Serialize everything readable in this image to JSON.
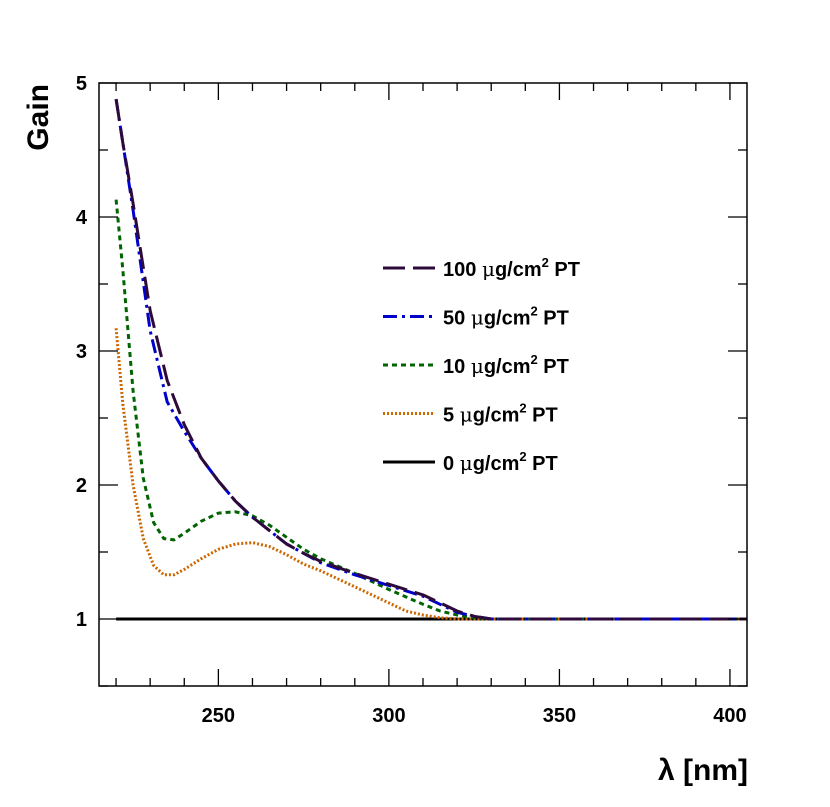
{
  "chart_data": {
    "type": "line",
    "title": "",
    "xlabel": "λ [nm]",
    "ylabel": "Gain",
    "xlim": [
      215,
      405
    ],
    "ylim": [
      0.5,
      5
    ],
    "xticks": [
      250,
      300,
      350,
      400
    ],
    "yticks": [
      1,
      2,
      3,
      4,
      5
    ],
    "grid": false,
    "legend_position": "right-center",
    "series": [
      {
        "name": "100 μg/cm² PT",
        "legend_pre": "100 ",
        "legend_sup": "2",
        "legend_post": " PT",
        "color": "#2d0a3a",
        "dash": "22,8",
        "points": [
          [
            220,
            4.88
          ],
          [
            222,
            4.55
          ],
          [
            225,
            4.1
          ],
          [
            230,
            3.3
          ],
          [
            235,
            2.78
          ],
          [
            240,
            2.45
          ],
          [
            245,
            2.2
          ],
          [
            250,
            2.03
          ],
          [
            255,
            1.88
          ],
          [
            260,
            1.76
          ],
          [
            265,
            1.66
          ],
          [
            270,
            1.56
          ],
          [
            275,
            1.49
          ],
          [
            280,
            1.43
          ],
          [
            290,
            1.34
          ],
          [
            300,
            1.26
          ],
          [
            310,
            1.18
          ],
          [
            315,
            1.12
          ],
          [
            320,
            1.06
          ],
          [
            325,
            1.02
          ],
          [
            330,
            1.0
          ],
          [
            405,
            1.0
          ]
        ]
      },
      {
        "name": "50 μg/cm² PT",
        "legend_pre": "50 ",
        "legend_sup": "2",
        "legend_post": " PT",
        "color": "#0000cc",
        "dash": "14,5,3,5",
        "points": [
          [
            220,
            4.88
          ],
          [
            222,
            4.55
          ],
          [
            225,
            4.05
          ],
          [
            230,
            3.15
          ],
          [
            235,
            2.62
          ],
          [
            240,
            2.4
          ],
          [
            245,
            2.2
          ],
          [
            250,
            2.03
          ],
          [
            255,
            1.88
          ],
          [
            260,
            1.76
          ],
          [
            265,
            1.66
          ],
          [
            270,
            1.56
          ],
          [
            275,
            1.49
          ],
          [
            280,
            1.42
          ],
          [
            290,
            1.33
          ],
          [
            300,
            1.25
          ],
          [
            310,
            1.17
          ],
          [
            315,
            1.11
          ],
          [
            320,
            1.05
          ],
          [
            325,
            1.02
          ],
          [
            330,
            1.0
          ],
          [
            405,
            1.0
          ]
        ]
      },
      {
        "name": "10 μg/cm² PT",
        "legend_pre": "10 ",
        "legend_sup": "2",
        "legend_post": " PT",
        "color": "#006400",
        "dash": "5,4",
        "points": [
          [
            220,
            4.13
          ],
          [
            222,
            3.6
          ],
          [
            225,
            2.7
          ],
          [
            228,
            2.05
          ],
          [
            231,
            1.72
          ],
          [
            234,
            1.6
          ],
          [
            237,
            1.59
          ],
          [
            240,
            1.64
          ],
          [
            245,
            1.73
          ],
          [
            250,
            1.79
          ],
          [
            255,
            1.8
          ],
          [
            260,
            1.77
          ],
          [
            265,
            1.7
          ],
          [
            270,
            1.61
          ],
          [
            275,
            1.52
          ],
          [
            280,
            1.45
          ],
          [
            290,
            1.34
          ],
          [
            300,
            1.22
          ],
          [
            310,
            1.11
          ],
          [
            315,
            1.06
          ],
          [
            320,
            1.03
          ],
          [
            325,
            1.01
          ],
          [
            330,
            1.0
          ],
          [
            405,
            1.0
          ]
        ]
      },
      {
        "name": "5 μg/cm² PT",
        "legend_pre": "5 ",
        "legend_sup": "2",
        "legend_post": " PT",
        "color": "#cc6600",
        "dash": "2,2",
        "points": [
          [
            220,
            3.17
          ],
          [
            222,
            2.6
          ],
          [
            225,
            2.0
          ],
          [
            228,
            1.6
          ],
          [
            231,
            1.4
          ],
          [
            234,
            1.33
          ],
          [
            237,
            1.33
          ],
          [
            240,
            1.37
          ],
          [
            245,
            1.45
          ],
          [
            250,
            1.52
          ],
          [
            255,
            1.56
          ],
          [
            260,
            1.57
          ],
          [
            265,
            1.54
          ],
          [
            270,
            1.48
          ],
          [
            275,
            1.41
          ],
          [
            280,
            1.36
          ],
          [
            290,
            1.24
          ],
          [
            300,
            1.12
          ],
          [
            305,
            1.06
          ],
          [
            310,
            1.03
          ],
          [
            315,
            1.01
          ],
          [
            320,
            1.0
          ],
          [
            405,
            1.0
          ]
        ]
      },
      {
        "name": "0 μg/cm² PT",
        "legend_pre": "0 ",
        "legend_sup": "2",
        "legend_post": " PT",
        "color": "#000000",
        "dash": "",
        "points": [
          [
            220,
            1.0
          ],
          [
            405,
            1.0
          ]
        ]
      }
    ]
  }
}
